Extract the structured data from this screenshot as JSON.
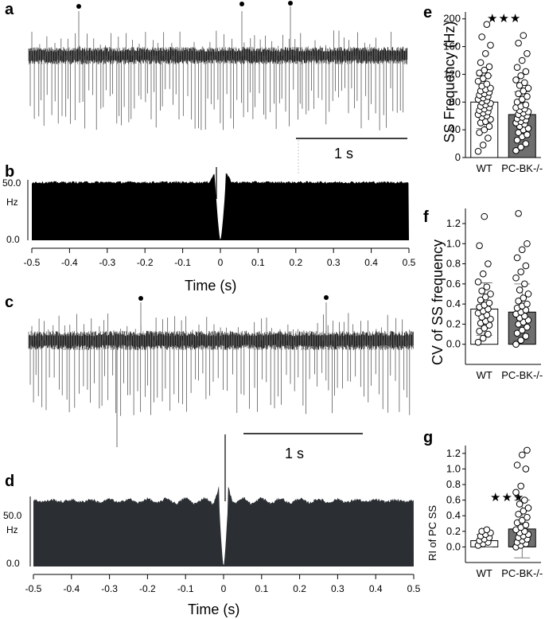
{
  "chart_data": [
    {
      "panel": "a",
      "type": "line",
      "trace": "simple spike recording",
      "complex_spike_markers": 3,
      "scale_bar": "1 s"
    },
    {
      "panel": "b",
      "type": "bar",
      "xlabel": "Time (s)",
      "ylabel": "Hz",
      "ytick_labels": [
        "50.0",
        "0.0"
      ],
      "ylim": [
        0,
        50
      ],
      "xlim": [
        -0.5,
        0.5
      ],
      "xtick_labels": [
        "-0.5",
        "-0.4",
        "-0.3",
        "-0.2",
        "-0.1",
        "0",
        "0.1",
        "0.2",
        "0.3",
        "0.4",
        "0.5"
      ],
      "baseline_hz": 48
    },
    {
      "panel": "c",
      "type": "line",
      "trace": "simple spike recording",
      "complex_spike_markers": 2,
      "scale_bar": "1 s"
    },
    {
      "panel": "d",
      "type": "bar",
      "xlabel": "Time (s)",
      "ylabel": "Hz",
      "ytick_labels": [
        "50.0",
        "0.0"
      ],
      "ylim": [
        0,
        50
      ],
      "xlim": [
        -0.5,
        0.5
      ],
      "xtick_labels": [
        "-0.5",
        "-0.4",
        "-0.3",
        "-0.2",
        "-0.1",
        "0",
        "0.1",
        "0.2",
        "0.3",
        "0.4",
        "0.5"
      ],
      "baseline_hz": 47,
      "oscillation_period_s": 0.05
    },
    {
      "panel": "e",
      "type": "bar",
      "ylabel": "SS Frequency (Hz)",
      "categories": [
        "WT",
        "PC-BK-/-"
      ],
      "values": [
        80,
        62
      ],
      "error": [
        38,
        33
      ],
      "ylim": [
        0,
        210
      ],
      "yticks": [
        0,
        40,
        80,
        120,
        160,
        200
      ],
      "ytick_labels": [
        "0",
        "40",
        "80",
        "120",
        "160",
        "200"
      ],
      "significance": "★★★",
      "points": [
        [
          9,
          18,
          28,
          36,
          40,
          45,
          50,
          52,
          55,
          58,
          60,
          62,
          64,
          66,
          68,
          70,
          72,
          74,
          76,
          78,
          80,
          82,
          84,
          86,
          88,
          90,
          92,
          94,
          96,
          98,
          100,
          103,
          106,
          110,
          114,
          118,
          122,
          126,
          131,
          137,
          150,
          162,
          174,
          192
        ],
        [
          10,
          15,
          20,
          25,
          30,
          33,
          36,
          40,
          42,
          45,
          48,
          50,
          52,
          54,
          56,
          58,
          60,
          62,
          64,
          66,
          68,
          70,
          72,
          74,
          76,
          80,
          84,
          88,
          92,
          96,
          100,
          104,
          108,
          112,
          118,
          124,
          130,
          140,
          150,
          165,
          176
        ]
      ]
    },
    {
      "panel": "f",
      "type": "bar",
      "ylabel": "CV of SS frequency",
      "categories": [
        "WT",
        "PC-BK-/-"
      ],
      "values": [
        0.35,
        0.32
      ],
      "error": [
        0.26,
        0.28
      ],
      "ylim": [
        -0.2,
        1.35
      ],
      "yticks": [
        0,
        0.2,
        0.4,
        0.6,
        0.8,
        1.0,
        1.2
      ],
      "ytick_labels": [
        "0.0",
        "0.2",
        "0.4",
        "0.6",
        "0.8",
        "1.0",
        "1.2"
      ],
      "points": [
        [
          0.02,
          0.06,
          0.1,
          0.13,
          0.16,
          0.19,
          0.21,
          0.23,
          0.25,
          0.27,
          0.29,
          0.31,
          0.33,
          0.35,
          0.37,
          0.39,
          0.41,
          0.44,
          0.47,
          0.5,
          0.53,
          0.57,
          0.62,
          0.7,
          0.8,
          0.98,
          1.27
        ],
        [
          0.0,
          0.04,
          0.08,
          0.11,
          0.14,
          0.17,
          0.2,
          0.22,
          0.24,
          0.26,
          0.28,
          0.3,
          0.32,
          0.34,
          0.36,
          0.38,
          0.4,
          0.43,
          0.46,
          0.5,
          0.54,
          0.6,
          0.66,
          0.72,
          0.78,
          0.86,
          0.94,
          1.0,
          1.3
        ]
      ]
    },
    {
      "panel": "g",
      "type": "bar",
      "ylabel": "RI of PC SS",
      "categories": [
        "WT",
        "PC-BK-/-"
      ],
      "values": [
        0.08,
        0.23
      ],
      "error": [
        0.08,
        0.37
      ],
      "ylim": [
        -0.2,
        1.3
      ],
      "yticks": [
        0,
        0.2,
        0.4,
        0.6,
        0.8,
        1.0,
        1.2
      ],
      "ytick_labels": [
        "0.0",
        "0.2",
        "0.4",
        "0.6",
        "0.8",
        "1.0",
        "1.2"
      ],
      "significance": "★★★",
      "points": [
        [
          0.02,
          0.04,
          0.06,
          0.08,
          0.1,
          0.12,
          0.14,
          0.16,
          0.18,
          0.2,
          0.22
        ],
        [
          0.0,
          0.02,
          0.04,
          0.06,
          0.08,
          0.1,
          0.12,
          0.14,
          0.16,
          0.18,
          0.2,
          0.22,
          0.25,
          0.28,
          0.31,
          0.34,
          0.38,
          0.42,
          0.46,
          0.5,
          0.55,
          0.6,
          0.7,
          0.78,
          1.0,
          1.05,
          1.18,
          1.24
        ]
      ]
    }
  ]
}
